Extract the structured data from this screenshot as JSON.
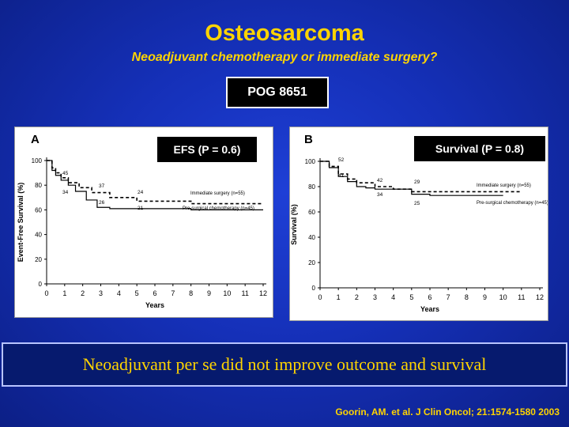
{
  "slide": {
    "title": "Osteosarcoma",
    "subtitle": "Neoadjuvant chemotherapy or immediate surgery?",
    "trial": "POG 8651",
    "conclusion": "Neoadjuvant per se did not improve outcome and survival",
    "citation": "Goorin, AM. et al. J Clin Oncol; 21:1574-1580 2003",
    "colors": {
      "title": "#ffd400",
      "background": "#1530b8"
    }
  },
  "chart_data": [
    {
      "type": "line",
      "panel": "A",
      "stat_label": "EFS (P = 0.6)",
      "xlabel": "Years",
      "ylabel": "Event-Free Survival (%)",
      "xlim": [
        0,
        12
      ],
      "ylim": [
        0,
        100
      ],
      "x_ticks": [
        0,
        1,
        2,
        3,
        4,
        5,
        6,
        7,
        8,
        9,
        10,
        11,
        12
      ],
      "y_ticks": [
        0,
        20,
        40,
        60,
        80,
        100
      ],
      "series": [
        {
          "name": "Immediate surgery (n=55)",
          "style": "dashed",
          "x": [
            0,
            0.3,
            0.5,
            0.8,
            1.2,
            1.8,
            2.5,
            3.5,
            5,
            8,
            12
          ],
          "y": [
            100,
            94,
            90,
            86,
            82,
            78,
            74,
            70,
            67,
            65,
            65
          ]
        },
        {
          "name": "Pre-surgical chemotherapy (n=45)",
          "style": "solid",
          "x": [
            0,
            0.3,
            0.5,
            0.8,
            1.2,
            1.6,
            2.2,
            2.8,
            3.5,
            5,
            8,
            12
          ],
          "y": [
            100,
            92,
            88,
            84,
            80,
            75,
            68,
            62,
            61,
            61,
            60,
            60
          ]
        }
      ],
      "annotations": [
        "45",
        "37",
        "34",
        "24",
        "26",
        "21"
      ]
    },
    {
      "type": "line",
      "panel": "B",
      "stat_label": "Survival (P = 0.8)",
      "xlabel": "Years",
      "ylabel": "Survival (%)",
      "xlim": [
        0,
        12
      ],
      "ylim": [
        0,
        100
      ],
      "x_ticks": [
        0,
        1,
        2,
        3,
        4,
        5,
        6,
        7,
        8,
        9,
        10,
        11,
        12
      ],
      "y_ticks": [
        0,
        20,
        40,
        60,
        80,
        100
      ],
      "series": [
        {
          "name": "Immediate surgery (n=55)",
          "style": "dashed",
          "x": [
            0,
            0.5,
            1,
            1.5,
            2,
            3,
            4,
            5,
            6,
            11
          ],
          "y": [
            100,
            96,
            90,
            86,
            83,
            80,
            78,
            76,
            76,
            76
          ]
        },
        {
          "name": "Pre-surgical chemotherapy (n=45)",
          "style": "solid",
          "x": [
            0,
            0.5,
            1,
            1.5,
            2,
            2.5,
            3,
            5,
            6,
            10
          ],
          "y": [
            100,
            95,
            88,
            84,
            80,
            79,
            78,
            74,
            73,
            73
          ]
        }
      ],
      "annotations": [
        "52",
        "41",
        "42",
        "34",
        "29",
        "25"
      ]
    }
  ]
}
